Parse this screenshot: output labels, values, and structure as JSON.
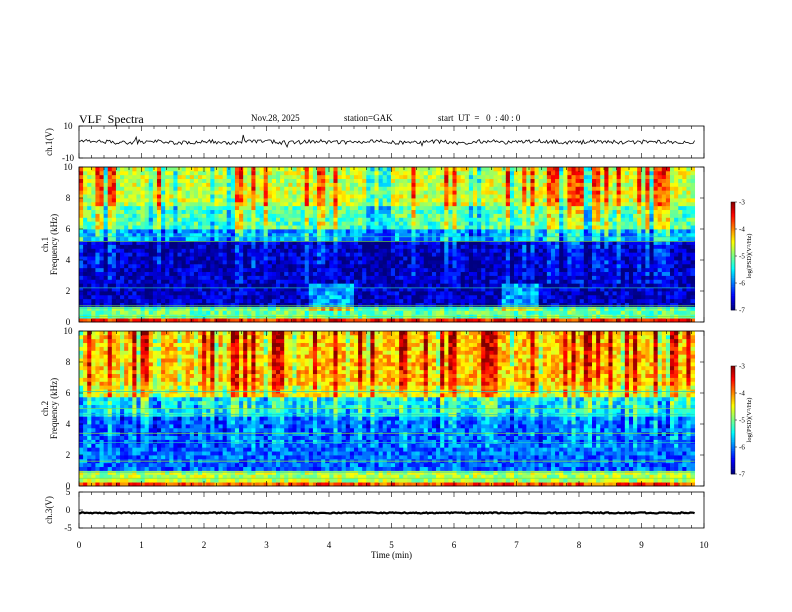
{
  "header": {
    "title": "VLF  Spectra",
    "date": "Nov.28, 2025",
    "station": "station=GAK",
    "start": "start  UT  =   0  : 40 : 0"
  },
  "chart_data": {
    "type": "heatmap",
    "xlabel": "Time  (min)",
    "xlim": [
      0,
      10
    ],
    "xticks": [
      "0",
      "1",
      "2",
      "3",
      "4",
      "5",
      "6",
      "7",
      "8",
      "9",
      "10"
    ],
    "panels": [
      {
        "id": "ch1-waveform",
        "type": "line",
        "ylabel": "ch.1(V)",
        "ylim": [
          -10,
          10
        ],
        "yticks": [
          "10",
          "-10"
        ],
        "baseline_v": 0,
        "data_end_min": 9.85
      },
      {
        "id": "ch1-spectrogram",
        "type": "heatmap",
        "ylabel_lines": [
          "ch.1",
          "Frequency  (kHz)"
        ],
        "ylim": [
          0,
          10
        ],
        "yticks": [
          "0",
          "2",
          "4",
          "6",
          "8",
          "10"
        ],
        "colorbar": {
          "label": "log(PSD)(V²/Hz)",
          "range": [
            -7,
            -3
          ],
          "ticks": [
            "-3",
            "-4",
            "-5",
            "-6",
            "-7"
          ]
        }
      },
      {
        "id": "ch2-spectrogram",
        "type": "heatmap",
        "ylabel_lines": [
          "ch.2",
          "Frequency  (kHz)"
        ],
        "ylim": [
          0,
          10
        ],
        "yticks": [
          "0",
          "2",
          "4",
          "6",
          "8",
          "10"
        ],
        "colorbar": {
          "label": "log(PSD)(V²/Hz)",
          "range": [
            -7,
            -3
          ],
          "ticks": [
            "-3",
            "-4",
            "-5",
            "-6",
            "-7"
          ]
        }
      },
      {
        "id": "ch3-waveform",
        "type": "line",
        "ylabel": "ch.3(V)",
        "ylim": [
          -5,
          5
        ],
        "yticks": [
          "5",
          "0",
          "-5"
        ],
        "baseline_v": -0.8,
        "data_end_min": 9.85
      }
    ]
  }
}
